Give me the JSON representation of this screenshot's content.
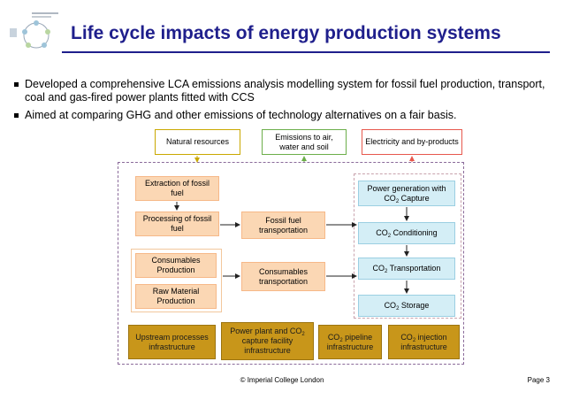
{
  "slide": {
    "title": "Life cycle impacts of energy production systems",
    "bullets": [
      "Developed a comprehensive LCA emissions analysis modelling system for fossil fuel production, transport, coal and gas-fired power plants fitted with CCS",
      "Aimed at comparing GHG and other emissions of technology alternatives on a fair basis."
    ],
    "footer": "© Imperial College London",
    "page": "Page 3"
  },
  "diagram": {
    "top": {
      "natural_resources": "Natural resources",
      "emissions": "Emissions to air, water and soil",
      "electricity": "Electricity and by-products"
    },
    "left": {
      "extraction": "Extraction of fossil fuel",
      "processing": "Processing of fossil fuel",
      "consumables_production": "Consumables Production",
      "raw_material": "Raw Material Production"
    },
    "middle": {
      "fossil_transport": "Fossil fuel transportation",
      "consumables_transport": "Consumables transportation"
    },
    "right": {
      "power_gen_pre": "Power generation with",
      "power_gen_co": "CO",
      "power_gen_post": " Capture",
      "conditioning_co": "CO",
      "conditioning_post": " Conditioning",
      "transport_co": "CO",
      "transport_post": " Transportation",
      "storage_co": "CO",
      "storage_post": " Storage",
      "sub2": "2"
    },
    "bottom": {
      "upstream": "Upstream processes infrastructure",
      "plant_pre": "Power plant and CO",
      "plant_post": " capture facility infrastructure",
      "pipeline_co": "CO",
      "pipeline_post": " pipeline infrastructure",
      "injection_co": "CO",
      "injection_post": " injection infrastructure",
      "sub2": "2"
    }
  },
  "colors": {
    "title": "#1f1f8c",
    "green": "#6cae4a",
    "red": "#e7584d",
    "yellow": "#c9a800",
    "peach": "#fbd7b4",
    "teal": "#d4eef6",
    "gold": "#c8961a"
  }
}
